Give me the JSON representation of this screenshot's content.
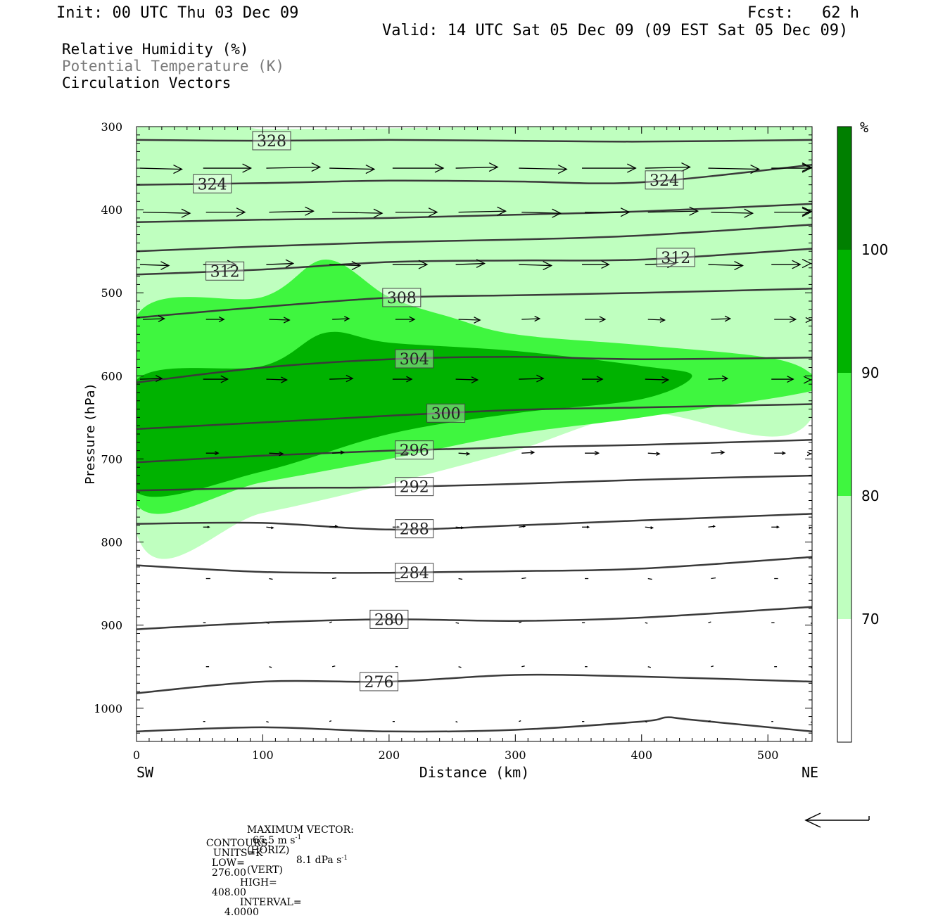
{
  "header": {
    "init": "Init: 00 UTC Thu 03 Dec 09",
    "fcst": "Fcst:   62 h",
    "valid": "Valid: 14 UTC Sat 05 Dec 09 (09 EST Sat 05 Dec 09)"
  },
  "legend": {
    "rh": "Relative Humidity (%)",
    "theta": "Potential Temperature (K)",
    "vectors": "Circulation Vectors"
  },
  "colors": {
    "rh_70_80": "#bfffbf",
    "rh_80_90": "#3ff63f",
    "rh_90_100": "#00b200",
    "rh_100": "#007f00",
    "contour": "#3a3a3a",
    "legend_theta": "#7a7a7a"
  },
  "chart_data": {
    "type": "cross-section",
    "xlabel": "Distance (km)",
    "ylabel": "Pressure (hPa)",
    "x_ticks": [
      "0",
      "100",
      "200",
      "300",
      "400",
      "500"
    ],
    "y_ticks": [
      "300",
      "400",
      "500",
      "600",
      "700",
      "800",
      "900",
      "1000"
    ],
    "xlim": [
      0,
      535
    ],
    "ylim": [
      300,
      1040
    ],
    "x_start_label": "SW",
    "x_end_label": "NE",
    "colorbar": {
      "unit": "%",
      "levels": [
        "70",
        "80",
        "90",
        "100"
      ]
    },
    "theta_contours": [
      {
        "label": "328",
        "x": [
          0,
          100,
          200,
          300,
          400,
          535
        ],
        "p": [
          316,
          317,
          316,
          317,
          318,
          316
        ]
      },
      {
        "label": "324",
        "x": [
          0,
          100,
          200,
          300,
          400,
          535
        ],
        "p": [
          370,
          368,
          365,
          366,
          367,
          346
        ]
      },
      {
        "label": "",
        "x": [
          0,
          100,
          200,
          300,
          400,
          535
        ],
        "p": [
          415,
          412,
          410,
          406,
          402,
          393
        ]
      },
      {
        "label": "",
        "x": [
          0,
          100,
          200,
          300,
          400,
          535
        ],
        "p": [
          450,
          444,
          439,
          436,
          431,
          418
        ]
      },
      {
        "label": "312",
        "x": [
          0,
          100,
          200,
          300,
          400,
          535
        ],
        "p": [
          478,
          472,
          463,
          461,
          460,
          447
        ]
      },
      {
        "label": "308",
        "x": [
          0,
          100,
          200,
          300,
          400,
          535
        ],
        "p": [
          530,
          517,
          506,
          503,
          500,
          495
        ]
      },
      {
        "label": "304",
        "x": [
          0,
          100,
          200,
          300,
          400,
          535
        ],
        "p": [
          608,
          590,
          580,
          577,
          580,
          578
        ]
      },
      {
        "label": "300",
        "x": [
          0,
          100,
          200,
          300,
          400,
          535
        ],
        "p": [
          664,
          656,
          648,
          641,
          638,
          634
        ]
      },
      {
        "label": "296",
        "x": [
          0,
          100,
          200,
          300,
          400,
          535
        ],
        "p": [
          704,
          696,
          690,
          686,
          683,
          677
        ]
      },
      {
        "label": "292",
        "x": [
          0,
          100,
          200,
          300,
          400,
          535
        ],
        "p": [
          738,
          735,
          734,
          730,
          725,
          720
        ]
      },
      {
        "label": "288",
        "x": [
          0,
          100,
          200,
          300,
          400,
          535
        ],
        "p": [
          778,
          777,
          785,
          780,
          774,
          766
        ]
      },
      {
        "label": "284",
        "x": [
          0,
          100,
          200,
          300,
          400,
          535
        ],
        "p": [
          828,
          836,
          837,
          835,
          832,
          818
        ]
      },
      {
        "label": "280",
        "x": [
          0,
          100,
          200,
          300,
          400,
          535
        ],
        "p": [
          905,
          897,
          893,
          895,
          891,
          878
        ]
      },
      {
        "label": "276",
        "x": [
          0,
          100,
          200,
          300,
          400,
          535
        ],
        "p": [
          982,
          968,
          968,
          960,
          962,
          968
        ]
      },
      {
        "label": "",
        "x": [
          0,
          100,
          200,
          300,
          400,
          420,
          440,
          535
        ],
        "p": [
          1028,
          1023,
          1028,
          1026,
          1016,
          1011,
          1014,
          1028
        ]
      }
    ],
    "rh_regions": [
      {
        "level": "70-80",
        "x": [
          0,
          100,
          200,
          300,
          400,
          500,
          535,
          535,
          400,
          300,
          200,
          100,
          0
        ],
        "p": [
          305,
          303,
          302,
          300,
          300,
          300,
          300,
          650,
          645,
          690,
          730,
          765,
          790
        ]
      },
      {
        "level": "80-90",
        "x": [
          0,
          100,
          150,
          200,
          250,
          300,
          400,
          500,
          535,
          535,
          400,
          300,
          200,
          100,
          0
        ],
        "p": [
          528,
          505,
          460,
          505,
          530,
          550,
          563,
          578,
          598,
          618,
          650,
          670,
          700,
          728,
          755
        ]
      },
      {
        "level": "90-100",
        "x": [
          0,
          100,
          150,
          200,
          300,
          400,
          440,
          400,
          300,
          200,
          100,
          0
        ],
        "p": [
          605,
          588,
          548,
          560,
          570,
          588,
          600,
          628,
          645,
          670,
          715,
          740
        ]
      }
    ],
    "vectors": {
      "rows_p": [
        350,
        403,
        466,
        532,
        604,
        693,
        782,
        844,
        897,
        950,
        1016
      ],
      "x_cols": [
        0,
        50,
        100,
        150,
        200,
        250,
        300,
        350,
        400,
        450,
        500,
        535
      ]
    },
    "footer": {
      "max_vector_label": "MAXIMUM VECTOR:",
      "max_vector_horiz": "65.5 m s",
      "horiz_suffix": "(HORIZ)",
      "max_vector_vert": "8.1 dPa s",
      "vert_suffix": "(VERT)",
      "exponent": "-1",
      "contours_label": "CONTOURS:",
      "units": "UNITS=K",
      "low_label": "LOW=",
      "low": "276.00",
      "high_label": "HIGH=",
      "high": "408.00",
      "interval_label": "INTERVAL=",
      "interval": "4.0000"
    }
  }
}
